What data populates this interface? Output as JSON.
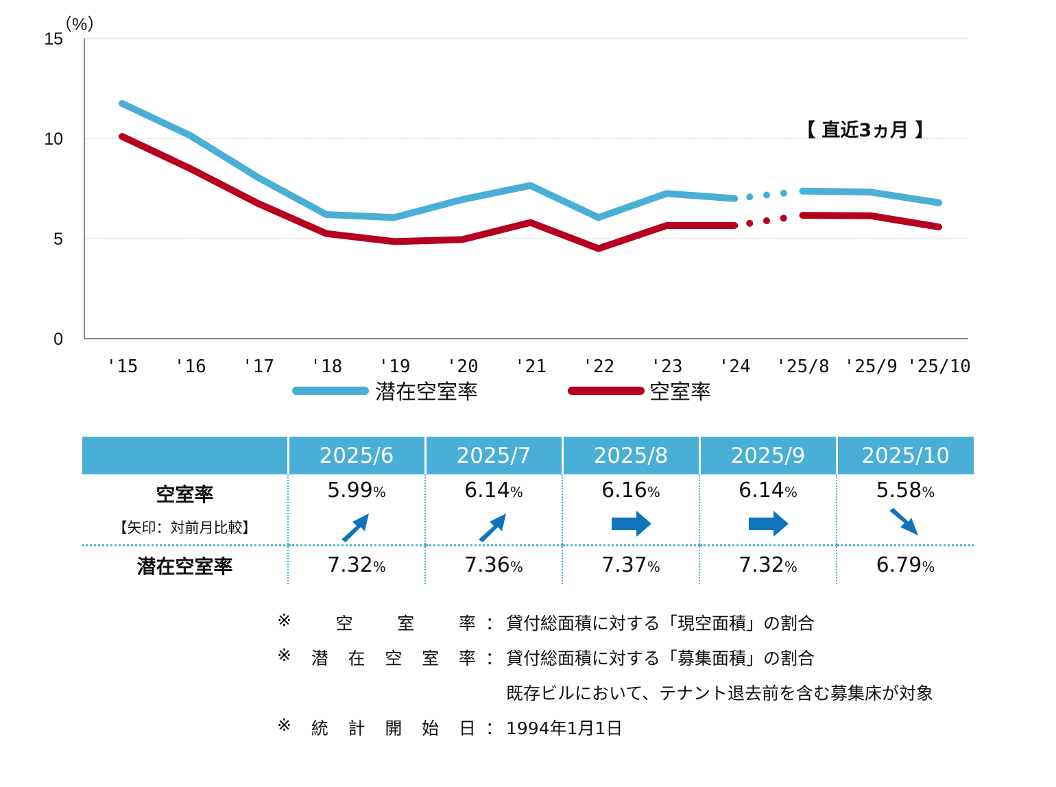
{
  "chart_data": {
    "type": "line",
    "unit_label": "（%）",
    "yticks": [
      "0",
      "5",
      "10",
      "15"
    ],
    "ylim": [
      0,
      15
    ],
    "categories": [
      "'15",
      "'16",
      "'17",
      "'18",
      "'19",
      "'20",
      "'21",
      "'22",
      "'23",
      "'24",
      "'25/8",
      "'25/9",
      "'25/10"
    ],
    "annotation": "【 直近3ヵ月 】",
    "grid": true,
    "series": [
      {
        "name": "潜在空室率",
        "color": "#4aafd6",
        "values": [
          11.75,
          10.15,
          8.05,
          6.2,
          6.05,
          6.95,
          7.65,
          6.05,
          7.25,
          7.0,
          7.37,
          7.32,
          6.79
        ]
      },
      {
        "name": "空室率",
        "color": "#b5001e",
        "values": [
          10.1,
          8.5,
          6.75,
          5.25,
          4.85,
          4.95,
          5.8,
          4.5,
          5.65,
          5.65,
          6.16,
          6.14,
          5.58
        ]
      }
    ]
  },
  "table": {
    "headers": [
      "2025/6",
      "2025/7",
      "2025/8",
      "2025/9",
      "2025/10"
    ],
    "vacancy_label": "空室率",
    "vacancy_sub": "【矢印：対前月比較】",
    "vacancy": [
      {
        "value": "5.99",
        "unit": "%",
        "arrow": "up"
      },
      {
        "value": "6.14",
        "unit": "%",
        "arrow": "up"
      },
      {
        "value": "6.16",
        "unit": "%",
        "arrow": "right"
      },
      {
        "value": "6.14",
        "unit": "%",
        "arrow": "right"
      },
      {
        "value": "5.58",
        "unit": "%",
        "arrow": "down"
      }
    ],
    "potential_label": "潜在空室率",
    "potential": [
      {
        "value": "7.32",
        "unit": "%"
      },
      {
        "value": "7.36",
        "unit": "%"
      },
      {
        "value": "7.37",
        "unit": "%"
      },
      {
        "value": "7.32",
        "unit": "%"
      },
      {
        "value": "6.79",
        "unit": "%"
      }
    ],
    "arrow_color": "#0f74bd"
  },
  "notes": [
    {
      "mark": "※",
      "label": [
        "空",
        "室",
        "率"
      ],
      "colon": "：",
      "text": "貸付総面積に対する「現空面積」の割合"
    },
    {
      "mark": "※",
      "label": [
        "潜",
        "在",
        "空",
        "室",
        "率"
      ],
      "colon": "：",
      "text": "貸付総面積に対する「募集面積」の割合"
    },
    {
      "mark": "",
      "label": [],
      "colon": "",
      "text": "既存ビルにおいて、テナント退去前を含む募集床が対象"
    },
    {
      "mark": "※",
      "label": [
        "統",
        "計",
        "開",
        "始",
        "日"
      ],
      "colon": "：",
      "text": "1994年1月1日"
    }
  ]
}
